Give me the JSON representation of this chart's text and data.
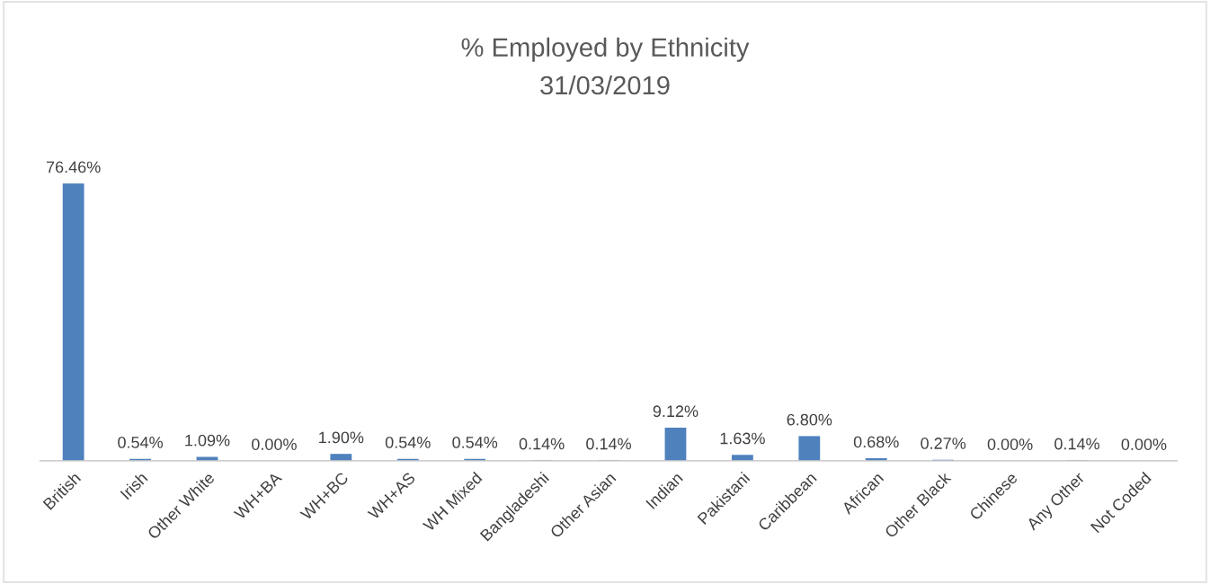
{
  "chart_data": {
    "type": "bar",
    "title": "% Employed by Ethnicity",
    "subtitle": "31/03/2019",
    "categories": [
      "British",
      "Irish",
      "Other White",
      "WH+BA",
      "WH+BC",
      "WH+AS",
      "WH Mixed",
      "Bangladeshi",
      "Other Asian",
      "Indian",
      "Pakistani",
      "Caribbean",
      "African",
      "Other Black",
      "Chinese",
      "Any Other",
      "Not Coded"
    ],
    "values": [
      76.46,
      0.54,
      1.09,
      0.0,
      1.9,
      0.54,
      0.54,
      0.14,
      0.14,
      9.12,
      1.63,
      6.8,
      0.68,
      0.27,
      0.0,
      0.14,
      0.0
    ],
    "value_labels": [
      "76.46%",
      "0.54%",
      "1.09%",
      "0.00%",
      "1.90%",
      "0.54%",
      "0.54%",
      "0.14%",
      "0.14%",
      "9.12%",
      "1.63%",
      "6.80%",
      "0.68%",
      "0.27%",
      "0.00%",
      "0.14%",
      "0.00%"
    ],
    "color": "#4f81bd",
    "legend": false,
    "grid": false
  }
}
